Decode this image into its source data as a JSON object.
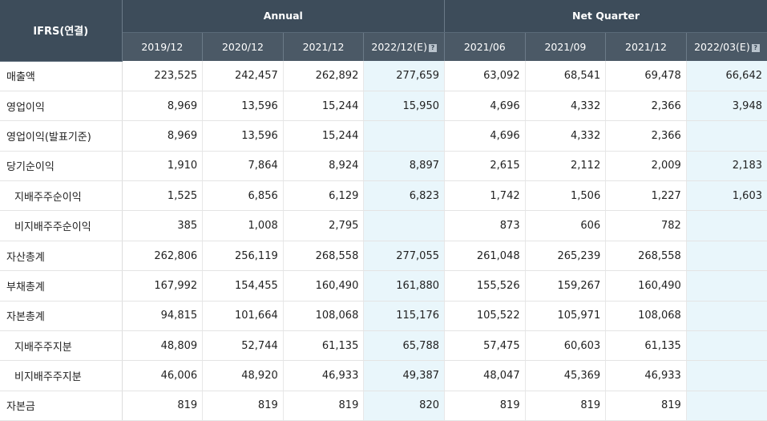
{
  "header": {
    "corner": "IFRS(연결)",
    "group_annual": "Annual",
    "group_quarter": "Net Quarter",
    "annual_cols": [
      "2019/12",
      "2020/12",
      "2021/12",
      "2022/12(E)"
    ],
    "quarter_cols": [
      "2021/06",
      "2021/09",
      "2021/12",
      "2022/03(E)"
    ],
    "estimate_icon": "help-icon"
  },
  "rows": [
    {
      "label": "매출액",
      "indent": false,
      "values": [
        "223,525",
        "242,457",
        "262,892",
        "277,659",
        "63,092",
        "68,541",
        "69,478",
        "66,642"
      ]
    },
    {
      "label": "영업이익",
      "indent": false,
      "values": [
        "8,969",
        "13,596",
        "15,244",
        "15,950",
        "4,696",
        "4,332",
        "2,366",
        "3,948"
      ]
    },
    {
      "label": "영업이익(발표기준)",
      "indent": false,
      "values": [
        "8,969",
        "13,596",
        "15,244",
        "",
        "4,696",
        "4,332",
        "2,366",
        ""
      ]
    },
    {
      "label": "당기순이익",
      "indent": false,
      "values": [
        "1,910",
        "7,864",
        "8,924",
        "8,897",
        "2,615",
        "2,112",
        "2,009",
        "2,183"
      ]
    },
    {
      "label": "지배주주순이익",
      "indent": true,
      "values": [
        "1,525",
        "6,856",
        "6,129",
        "6,823",
        "1,742",
        "1,506",
        "1,227",
        "1,603"
      ]
    },
    {
      "label": "비지배주주순이익",
      "indent": true,
      "values": [
        "385",
        "1,008",
        "2,795",
        "",
        "873",
        "606",
        "782",
        ""
      ]
    },
    {
      "label": "자산총계",
      "indent": false,
      "values": [
        "262,806",
        "256,119",
        "268,558",
        "277,055",
        "261,048",
        "265,239",
        "268,558",
        ""
      ]
    },
    {
      "label": "부채총계",
      "indent": false,
      "values": [
        "167,992",
        "154,455",
        "160,490",
        "161,880",
        "155,526",
        "159,267",
        "160,490",
        ""
      ]
    },
    {
      "label": "자본총계",
      "indent": false,
      "values": [
        "94,815",
        "101,664",
        "108,068",
        "115,176",
        "105,522",
        "105,971",
        "108,068",
        ""
      ]
    },
    {
      "label": "지배주주지분",
      "indent": true,
      "values": [
        "48,809",
        "52,744",
        "61,135",
        "65,788",
        "57,475",
        "60,603",
        "61,135",
        ""
      ]
    },
    {
      "label": "비지배주주지분",
      "indent": true,
      "values": [
        "46,006",
        "48,920",
        "46,933",
        "49,387",
        "48,047",
        "45,369",
        "46,933",
        ""
      ]
    },
    {
      "label": "자본금",
      "indent": false,
      "values": [
        "819",
        "819",
        "819",
        "820",
        "819",
        "819",
        "819",
        ""
      ]
    }
  ],
  "colors": {
    "header_bg": "#3d4c5a",
    "estimate_bg": "#e9f6fb"
  }
}
